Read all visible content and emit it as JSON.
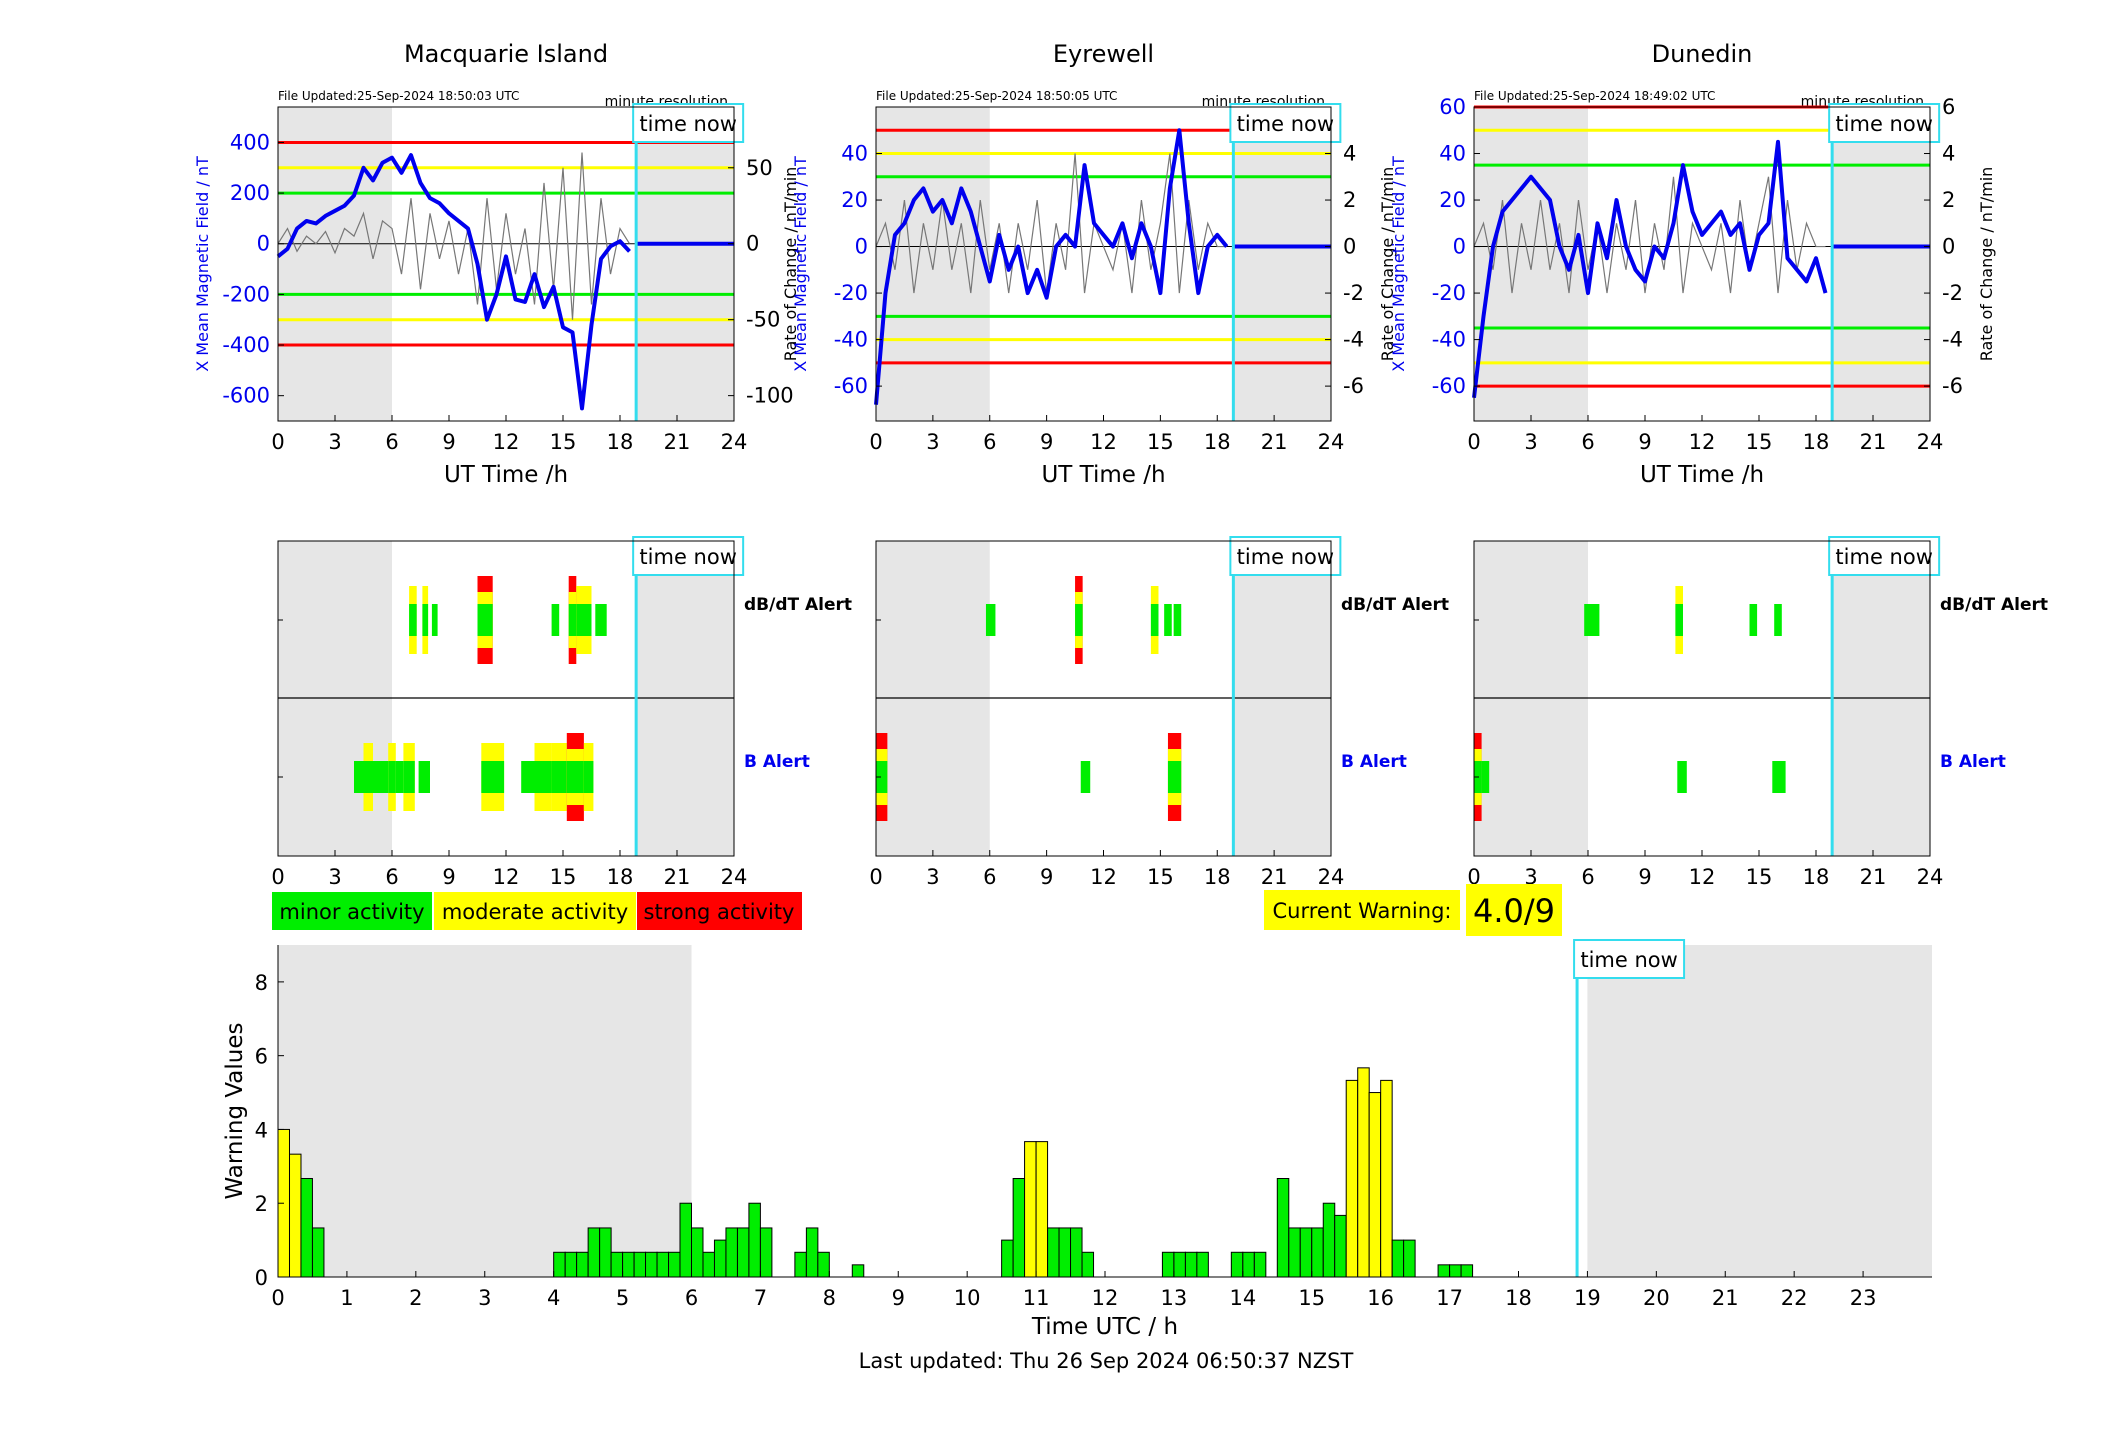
{
  "last_updated": "Last updated: Thu 26 Sep 2024 06:50:37 NZST",
  "time_now_label": "time now",
  "time_now_hour": 18.85,
  "colors": {
    "minor": "#00ee00",
    "moderate": "#ffff00",
    "strong": "#ff0000",
    "field": "#0000ee",
    "time_now": "#33ddee",
    "night": "#e6e6e6"
  },
  "legend": {
    "minor": "minor activity",
    "moderate": "moderate activity",
    "strong": "strong activity"
  },
  "current_warning": {
    "label": "Current Warning:",
    "value": "4.0/9"
  },
  "chart_data": [
    {
      "type": "line",
      "id": "macquarie",
      "title": "Macquarie Island",
      "file_updated": "File Updated:25-Sep-2024 18:50:03 UTC",
      "resolution": "minute resolution",
      "xlabel": "UT Time /h",
      "ylabel_left": "X Mean Magnetic Field / nT",
      "ylabel_right": "Rate of Change / nT/min",
      "xlim": [
        0,
        24
      ],
      "xticks": [
        0,
        3,
        6,
        9,
        12,
        15,
        18,
        21,
        24
      ],
      "ylim_left": [
        -700,
        540
      ],
      "yticks_left": [
        400,
        200,
        0,
        -200,
        -400,
        -600
      ],
      "ylim_right": [
        -116.7,
        90
      ],
      "yticks_right": [
        50,
        0,
        -50,
        -100
      ],
      "thresholds": {
        "strong": 400,
        "moderate": 300,
        "minor": 200
      },
      "x": [
        0,
        0.5,
        1,
        1.5,
        2,
        2.5,
        3,
        3.5,
        4,
        4.5,
        5,
        5.5,
        6,
        6.5,
        7,
        7.5,
        8,
        8.5,
        9,
        9.5,
        10,
        10.5,
        11,
        11.5,
        12,
        12.5,
        13,
        13.5,
        14,
        14.5,
        15,
        15.5,
        16,
        16.5,
        17,
        17.5,
        18,
        18.5
      ],
      "field": [
        -50,
        -20,
        60,
        90,
        80,
        110,
        130,
        150,
        190,
        300,
        250,
        320,
        340,
        280,
        350,
        240,
        180,
        160,
        120,
        90,
        60,
        -80,
        -300,
        -200,
        -50,
        -220,
        -230,
        -120,
        -250,
        -170,
        -330,
        -350,
        -650,
        -320,
        -60,
        -10,
        10,
        -30
      ],
      "rate": [
        0,
        10,
        -5,
        5,
        0,
        8,
        -6,
        10,
        5,
        20,
        -10,
        15,
        10,
        -20,
        30,
        -30,
        20,
        -10,
        15,
        -20,
        10,
        -40,
        30,
        -30,
        20,
        -20,
        10,
        -40,
        40,
        -30,
        50,
        -50,
        60,
        -40,
        30,
        -20,
        10,
        0
      ]
    },
    {
      "type": "line",
      "id": "eyrewell",
      "title": "Eyrewell",
      "file_updated": "File Updated:25-Sep-2024 18:50:05 UTC",
      "resolution": "minute resolution",
      "xlabel": "UT Time /h",
      "ylabel_left": "X Mean Magnetic Field / nT",
      "ylabel_right": "Rate of Change / nT/min",
      "xlim": [
        0,
        24
      ],
      "xticks": [
        0,
        3,
        6,
        9,
        12,
        15,
        18,
        21,
        24
      ],
      "ylim_left": [
        -75,
        60
      ],
      "yticks_left": [
        40,
        20,
        0,
        -20,
        -40,
        -60
      ],
      "ylim_right": [
        -7.5,
        6
      ],
      "yticks_right": [
        4,
        2,
        0,
        -2,
        -4,
        -6
      ],
      "thresholds": {
        "strong": 50,
        "moderate": 40,
        "minor": 30
      },
      "x": [
        0,
        0.5,
        1,
        1.5,
        2,
        2.5,
        3,
        3.5,
        4,
        4.5,
        5,
        5.5,
        6,
        6.5,
        7,
        7.5,
        8,
        8.5,
        9,
        9.5,
        10,
        10.5,
        11,
        11.5,
        12,
        12.5,
        13,
        13.5,
        14,
        14.5,
        15,
        15.5,
        16,
        16.5,
        17,
        17.5,
        18,
        18.5
      ],
      "field": [
        -68,
        -20,
        5,
        10,
        20,
        25,
        15,
        20,
        10,
        25,
        15,
        0,
        -15,
        5,
        -10,
        0,
        -20,
        -10,
        -22,
        0,
        5,
        0,
        35,
        10,
        5,
        0,
        10,
        -5,
        10,
        0,
        -20,
        25,
        50,
        10,
        -20,
        0,
        5,
        0
      ],
      "rate": [
        0,
        1,
        -1,
        2,
        -2,
        1,
        -1,
        2,
        -1,
        1,
        -2,
        2,
        -1,
        1,
        -2,
        1,
        -1,
        2,
        -2,
        1,
        -1,
        4,
        -2,
        1,
        0,
        -1,
        1,
        -2,
        2,
        -1,
        1,
        4,
        -2,
        2,
        -1,
        1,
        0,
        0
      ]
    },
    {
      "type": "line",
      "id": "dunedin",
      "title": "Dunedin",
      "file_updated": "File Updated:25-Sep-2024 18:49:02 UTC",
      "resolution": "minute resolution",
      "xlabel": "UT Time /h",
      "ylabel_left": "X Mean Magnetic Field / nT",
      "ylabel_right": "Rate of Change / nT/min",
      "xlim": [
        0,
        24
      ],
      "xticks": [
        0,
        3,
        6,
        9,
        12,
        15,
        18,
        21,
        24
      ],
      "ylim_left": [
        -75,
        60
      ],
      "yticks_left": [
        60,
        40,
        20,
        0,
        -20,
        -40,
        -60
      ],
      "ylim_right": [
        -7.5,
        6
      ],
      "yticks_right": [
        6,
        4,
        2,
        0,
        -2,
        -4,
        -6
      ],
      "thresholds": {
        "strong": 60,
        "moderate": 50,
        "minor": 35
      },
      "x": [
        0,
        0.5,
        1,
        1.5,
        2,
        2.5,
        3,
        3.5,
        4,
        4.5,
        5,
        5.5,
        6,
        6.5,
        7,
        7.5,
        8,
        8.5,
        9,
        9.5,
        10,
        10.5,
        11,
        11.5,
        12,
        12.5,
        13,
        13.5,
        14,
        14.5,
        15,
        15.5,
        16,
        16.5,
        17,
        17.5,
        18,
        18.5
      ],
      "field": [
        -65,
        -30,
        0,
        15,
        20,
        25,
        30,
        25,
        20,
        0,
        -10,
        5,
        -20,
        10,
        -5,
        20,
        0,
        -10,
        -15,
        0,
        -5,
        10,
        35,
        15,
        5,
        10,
        15,
        5,
        10,
        -10,
        5,
        10,
        45,
        -5,
        -10,
        -15,
        -5,
        -20
      ],
      "rate": [
        0,
        1,
        -1,
        2,
        -2,
        1,
        -1,
        2,
        -1,
        1,
        -2,
        2,
        -1,
        1,
        -2,
        1,
        -1,
        2,
        -2,
        1,
        -1,
        3,
        -2,
        1,
        0,
        -1,
        1,
        -2,
        2,
        -1,
        1,
        3,
        -2,
        2,
        -1,
        1,
        0,
        0
      ]
    },
    {
      "type": "bar",
      "id": "alerts_macquarie",
      "labels": {
        "dbdt": "dB/dT Alert",
        "b": "B Alert"
      },
      "xlim": [
        0,
        24
      ],
      "xticks": [
        0,
        3,
        6,
        9,
        12,
        15,
        18,
        21,
        24
      ],
      "dbdt": [
        {
          "start": 6.9,
          "end": 7.3,
          "level": 2
        },
        {
          "start": 7.6,
          "end": 7.9,
          "level": 2
        },
        {
          "start": 8.1,
          "end": 8.4,
          "level": 1
        },
        {
          "start": 10.5,
          "end": 11.3,
          "level": 3
        },
        {
          "start": 14.4,
          "end": 14.8,
          "level": 1
        },
        {
          "start": 15.3,
          "end": 15.7,
          "level": 3
        },
        {
          "start": 15.7,
          "end": 16.5,
          "level": 2
        },
        {
          "start": 16.7,
          "end": 17.3,
          "level": 1
        }
      ],
      "b": [
        {
          "start": 4.0,
          "end": 4.5,
          "level": 1
        },
        {
          "start": 4.5,
          "end": 5.0,
          "level": 2
        },
        {
          "start": 5.0,
          "end": 5.8,
          "level": 1
        },
        {
          "start": 5.8,
          "end": 6.2,
          "level": 2
        },
        {
          "start": 6.2,
          "end": 6.6,
          "level": 1
        },
        {
          "start": 6.6,
          "end": 7.2,
          "level": 2
        },
        {
          "start": 7.4,
          "end": 8.0,
          "level": 1
        },
        {
          "start": 10.7,
          "end": 11.9,
          "level": 2
        },
        {
          "start": 12.8,
          "end": 13.5,
          "level": 1
        },
        {
          "start": 13.5,
          "end": 14.4,
          "level": 2
        },
        {
          "start": 14.4,
          "end": 15.2,
          "level": 2
        },
        {
          "start": 15.2,
          "end": 16.1,
          "level": 3
        },
        {
          "start": 16.1,
          "end": 16.6,
          "level": 2
        }
      ]
    },
    {
      "type": "bar",
      "id": "alerts_eyrewell",
      "labels": {
        "dbdt": "dB/dT Alert",
        "b": "B Alert"
      },
      "xlim": [
        0,
        24
      ],
      "xticks": [
        0,
        3,
        6,
        9,
        12,
        15,
        18,
        21,
        24
      ],
      "dbdt": [
        {
          "start": 5.8,
          "end": 6.3,
          "level": 1
        },
        {
          "start": 10.5,
          "end": 10.9,
          "level": 3
        },
        {
          "start": 14.5,
          "end": 14.9,
          "level": 2
        },
        {
          "start": 15.2,
          "end": 15.6,
          "level": 1
        },
        {
          "start": 15.7,
          "end": 16.1,
          "level": 1
        }
      ],
      "b": [
        {
          "start": 0.0,
          "end": 0.6,
          "level": 3
        },
        {
          "start": 10.8,
          "end": 11.3,
          "level": 1
        },
        {
          "start": 15.4,
          "end": 16.1,
          "level": 3
        }
      ]
    },
    {
      "type": "bar",
      "id": "alerts_dunedin",
      "labels": {
        "dbdt": "dB/dT Alert",
        "b": "B Alert"
      },
      "xlim": [
        0,
        24
      ],
      "xticks": [
        0,
        3,
        6,
        9,
        12,
        15,
        18,
        21,
        24
      ],
      "dbdt": [
        {
          "start": 5.8,
          "end": 6.6,
          "level": 1
        },
        {
          "start": 10.6,
          "end": 11.0,
          "level": 2
        },
        {
          "start": 14.5,
          "end": 14.9,
          "level": 1
        },
        {
          "start": 15.8,
          "end": 16.2,
          "level": 1
        }
      ],
      "b": [
        {
          "start": 0.0,
          "end": 0.4,
          "level": 3
        },
        {
          "start": 0.4,
          "end": 0.8,
          "level": 1
        },
        {
          "start": 10.7,
          "end": 11.2,
          "level": 1
        },
        {
          "start": 15.7,
          "end": 16.4,
          "level": 1
        }
      ]
    },
    {
      "type": "bar",
      "id": "warning_values",
      "xlabel": "Time UTC / h",
      "ylabel": "Warning Values",
      "xlim": [
        0,
        24
      ],
      "ylim": [
        0,
        9
      ],
      "xticks": [
        0,
        1,
        2,
        3,
        4,
        5,
        6,
        7,
        8,
        9,
        10,
        11,
        12,
        13,
        14,
        15,
        16,
        17,
        18,
        19,
        20,
        21,
        22,
        23
      ],
      "yticks": [
        0,
        2,
        4,
        6,
        8
      ],
      "bar_width": 0.1667,
      "bars": [
        {
          "t": 0.0,
          "v": 4.0,
          "level": 2
        },
        {
          "t": 0.167,
          "v": 3.33,
          "level": 2
        },
        {
          "t": 0.333,
          "v": 2.67,
          "level": 1
        },
        {
          "t": 0.5,
          "v": 1.33,
          "level": 1
        },
        {
          "t": 4.0,
          "v": 0.67,
          "level": 1
        },
        {
          "t": 4.167,
          "v": 0.67,
          "level": 1
        },
        {
          "t": 4.333,
          "v": 0.67,
          "level": 1
        },
        {
          "t": 4.5,
          "v": 1.33,
          "level": 1
        },
        {
          "t": 4.667,
          "v": 1.33,
          "level": 1
        },
        {
          "t": 4.833,
          "v": 0.67,
          "level": 1
        },
        {
          "t": 5.0,
          "v": 0.67,
          "level": 1
        },
        {
          "t": 5.167,
          "v": 0.67,
          "level": 1
        },
        {
          "t": 5.333,
          "v": 0.67,
          "level": 1
        },
        {
          "t": 5.5,
          "v": 0.67,
          "level": 1
        },
        {
          "t": 5.667,
          "v": 0.67,
          "level": 1
        },
        {
          "t": 5.833,
          "v": 2.0,
          "level": 1
        },
        {
          "t": 6.0,
          "v": 1.33,
          "level": 1
        },
        {
          "t": 6.167,
          "v": 0.67,
          "level": 1
        },
        {
          "t": 6.333,
          "v": 1.0,
          "level": 1
        },
        {
          "t": 6.5,
          "v": 1.33,
          "level": 1
        },
        {
          "t": 6.667,
          "v": 1.33,
          "level": 1
        },
        {
          "t": 6.833,
          "v": 2.0,
          "level": 1
        },
        {
          "t": 7.0,
          "v": 1.33,
          "level": 1
        },
        {
          "t": 7.5,
          "v": 0.67,
          "level": 1
        },
        {
          "t": 7.667,
          "v": 1.33,
          "level": 1
        },
        {
          "t": 7.833,
          "v": 0.67,
          "level": 1
        },
        {
          "t": 8.333,
          "v": 0.33,
          "level": 1
        },
        {
          "t": 10.5,
          "v": 1.0,
          "level": 1
        },
        {
          "t": 10.667,
          "v": 2.67,
          "level": 1
        },
        {
          "t": 10.833,
          "v": 3.67,
          "level": 2
        },
        {
          "t": 11.0,
          "v": 3.67,
          "level": 2
        },
        {
          "t": 11.167,
          "v": 1.33,
          "level": 1
        },
        {
          "t": 11.333,
          "v": 1.33,
          "level": 1
        },
        {
          "t": 11.5,
          "v": 1.33,
          "level": 1
        },
        {
          "t": 11.667,
          "v": 0.67,
          "level": 1
        },
        {
          "t": 12.833,
          "v": 0.67,
          "level": 1
        },
        {
          "t": 13.0,
          "v": 0.67,
          "level": 1
        },
        {
          "t": 13.167,
          "v": 0.67,
          "level": 1
        },
        {
          "t": 13.333,
          "v": 0.67,
          "level": 1
        },
        {
          "t": 13.833,
          "v": 0.67,
          "level": 1
        },
        {
          "t": 14.0,
          "v": 0.67,
          "level": 1
        },
        {
          "t": 14.167,
          "v": 0.67,
          "level": 1
        },
        {
          "t": 14.5,
          "v": 2.67,
          "level": 1
        },
        {
          "t": 14.667,
          "v": 1.33,
          "level": 1
        },
        {
          "t": 14.833,
          "v": 1.33,
          "level": 1
        },
        {
          "t": 15.0,
          "v": 1.33,
          "level": 1
        },
        {
          "t": 15.167,
          "v": 2.0,
          "level": 1
        },
        {
          "t": 15.333,
          "v": 1.67,
          "level": 1
        },
        {
          "t": 15.5,
          "v": 5.33,
          "level": 2
        },
        {
          "t": 15.667,
          "v": 5.67,
          "level": 2
        },
        {
          "t": 15.833,
          "v": 5.0,
          "level": 2
        },
        {
          "t": 16.0,
          "v": 5.33,
          "level": 2
        },
        {
          "t": 16.167,
          "v": 1.0,
          "level": 1
        },
        {
          "t": 16.333,
          "v": 1.0,
          "level": 1
        },
        {
          "t": 16.833,
          "v": 0.33,
          "level": 1
        },
        {
          "t": 17.0,
          "v": 0.33,
          "level": 1
        },
        {
          "t": 17.167,
          "v": 0.33,
          "level": 1
        }
      ]
    }
  ]
}
